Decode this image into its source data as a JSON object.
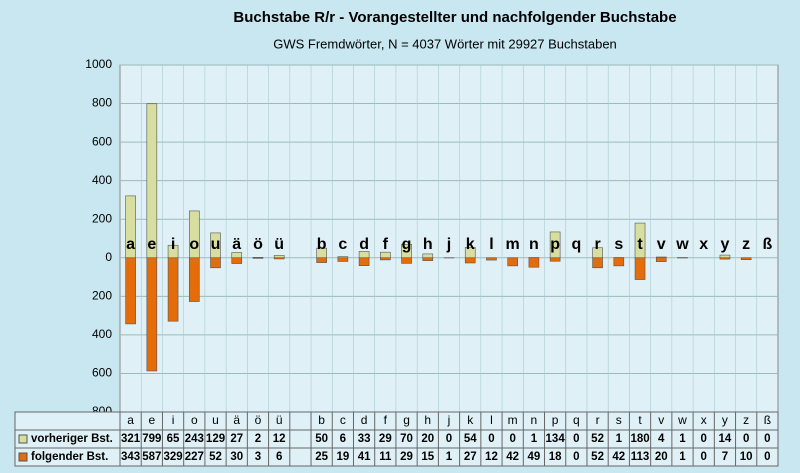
{
  "chart_data": {
    "type": "bar",
    "title": "Buchstabe R/r - Vorangestellter und nachfolgender Buchstabe",
    "subtitle": "GWS Fremdwörter,  N = 4037 Wörter mit 29927 Buchstaben",
    "categories": [
      "a",
      "e",
      "i",
      "o",
      "u",
      "ä",
      "ö",
      "ü",
      null,
      "b",
      "c",
      "d",
      "f",
      "g",
      "h",
      "j",
      "k",
      "l",
      "m",
      "n",
      "p",
      "q",
      "r",
      "s",
      "t",
      "v",
      "w",
      "x",
      "y",
      "z",
      "ß"
    ],
    "series": [
      {
        "name": "vorheriger Bst.",
        "color": "#d7dea0",
        "values": [
          321,
          799,
          65,
          243,
          129,
          27,
          2,
          12,
          null,
          50,
          6,
          33,
          29,
          70,
          20,
          0,
          54,
          0,
          0,
          1,
          134,
          0,
          52,
          1,
          180,
          4,
          1,
          0,
          14,
          0,
          0
        ]
      },
      {
        "name": "folgender Bst.",
        "color": "#e46c0a",
        "values": [
          -343,
          -587,
          -329,
          -227,
          -52,
          -30,
          -3,
          -6,
          null,
          -25,
          -19,
          -41,
          -11,
          -29,
          -15,
          -1,
          -27,
          -12,
          -42,
          -49,
          -18,
          0,
          -52,
          -42,
          -113,
          -20,
          -1,
          0,
          -7,
          -10,
          0
        ],
        "value_labels": [
          "343",
          "587",
          "329",
          "227",
          "52",
          "30",
          "3",
          "6",
          null,
          "25",
          "19",
          "41",
          "11",
          "29",
          "15",
          "1",
          "27",
          "12",
          "42",
          "49",
          "18",
          "0",
          "52",
          "42",
          "113",
          "20",
          "1",
          "0",
          "7",
          "10",
          "0"
        ]
      }
    ],
    "ylim": [
      -800,
      1000
    ],
    "yticks": [
      1000,
      800,
      600,
      400,
      200,
      0,
      {
        "value": -200,
        "label": "200"
      },
      {
        "value": -400,
        "label": "400"
      },
      {
        "value": -600,
        "label": "600"
      },
      {
        "value": -800,
        "label": "800"
      }
    ],
    "grid": true
  }
}
